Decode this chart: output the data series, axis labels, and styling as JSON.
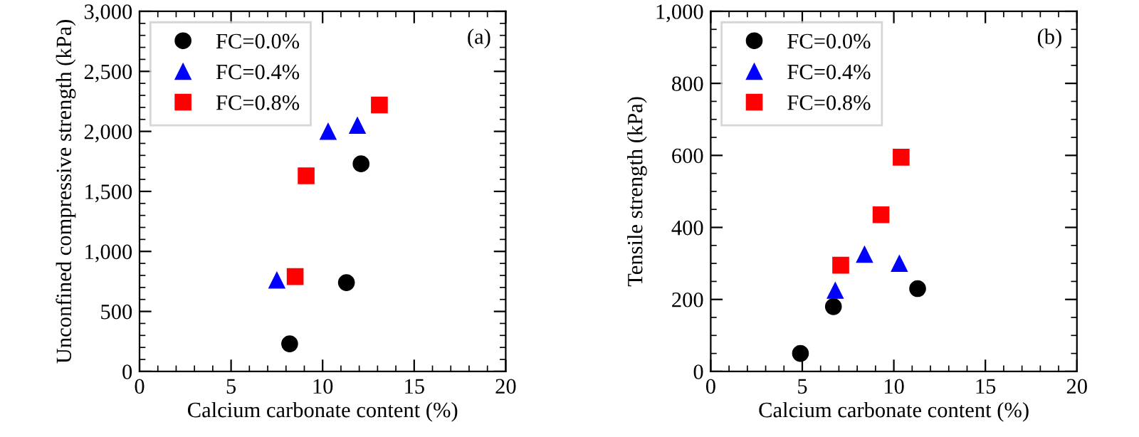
{
  "chart_data": [
    {
      "type": "scatter",
      "xlabel": "Calcium carbonate content (%)",
      "ylabel": "Unconfined compressive strength (kPa)",
      "annotations": [
        "(a)"
      ],
      "legend": "top left",
      "grid": false,
      "xlim": [
        0,
        20
      ],
      "ylim": [
        0,
        3000
      ],
      "xticks": [
        0,
        {
          "value": 1,
          "label": null
        },
        {
          "value": 2,
          "label": null
        },
        {
          "value": 3,
          "label": null
        },
        {
          "value": 4,
          "label": null
        },
        5,
        {
          "value": 6,
          "label": null
        },
        {
          "value": 7,
          "label": null
        },
        {
          "value": 8,
          "label": null
        },
        {
          "value": 9,
          "label": null
        },
        10,
        {
          "value": 11,
          "label": null
        },
        {
          "value": 12,
          "label": null
        },
        {
          "value": 13,
          "label": null
        },
        {
          "value": 14,
          "label": null
        },
        15,
        {
          "value": 16,
          "label": null
        },
        {
          "value": 17,
          "label": null
        },
        {
          "value": 18,
          "label": null
        },
        {
          "value": 19,
          "label": null
        },
        20
      ],
      "yticks": [
        {
          "value": 0,
          "label": "0"
        },
        {
          "value": 100,
          "label": null
        },
        {
          "value": 200,
          "label": null
        },
        {
          "value": 300,
          "label": null
        },
        {
          "value": 400,
          "label": null
        },
        {
          "value": 500,
          "label": "500"
        },
        {
          "value": 600,
          "label": null
        },
        {
          "value": 700,
          "label": null
        },
        {
          "value": 800,
          "label": null
        },
        {
          "value": 900,
          "label": null
        },
        {
          "value": 1000,
          "label": "1,000"
        },
        {
          "value": 1100,
          "label": null
        },
        {
          "value": 1200,
          "label": null
        },
        {
          "value": 1300,
          "label": null
        },
        {
          "value": 1400,
          "label": null
        },
        {
          "value": 1500,
          "label": "1,500"
        },
        {
          "value": 1600,
          "label": null
        },
        {
          "value": 1700,
          "label": null
        },
        {
          "value": 1800,
          "label": null
        },
        {
          "value": 1900,
          "label": null
        },
        {
          "value": 2000,
          "label": "2,000"
        },
        {
          "value": 2100,
          "label": null
        },
        {
          "value": 2200,
          "label": null
        },
        {
          "value": 2300,
          "label": null
        },
        {
          "value": 2400,
          "label": null
        },
        {
          "value": 2500,
          "label": "2,500"
        },
        {
          "value": 2600,
          "label": null
        },
        {
          "value": 2700,
          "label": null
        },
        {
          "value": 2800,
          "label": null
        },
        {
          "value": 2900,
          "label": null
        },
        {
          "value": 3000,
          "label": "3,000"
        }
      ],
      "series": [
        {
          "name": "FC=0.0%",
          "color": "#000000",
          "marker": "circle",
          "x": [
            8.2,
            11.3,
            12.1
          ],
          "values": [
            230,
            740,
            1730
          ]
        },
        {
          "name": "FC=0.4%",
          "color": "#0000ff",
          "marker": "triangle",
          "x": [
            7.5,
            10.3,
            11.9
          ],
          "values": [
            760,
            2000,
            2050
          ]
        },
        {
          "name": "FC=0.8%",
          "color": "#ff0000",
          "marker": "square",
          "x": [
            8.5,
            9.1,
            13.1
          ],
          "values": [
            790,
            1630,
            2220
          ]
        }
      ]
    },
    {
      "type": "scatter",
      "xlabel": "Calcium carbonate content (%)",
      "ylabel": "Tensile strength (kPa)",
      "annotations": [
        "(b)"
      ],
      "legend": "top left",
      "grid": false,
      "xlim": [
        0,
        20
      ],
      "ylim": [
        0,
        1000
      ],
      "xticks": [
        0,
        {
          "value": 1,
          "label": null
        },
        {
          "value": 2,
          "label": null
        },
        {
          "value": 3,
          "label": null
        },
        {
          "value": 4,
          "label": null
        },
        5,
        {
          "value": 6,
          "label": null
        },
        {
          "value": 7,
          "label": null
        },
        {
          "value": 8,
          "label": null
        },
        {
          "value": 9,
          "label": null
        },
        10,
        {
          "value": 11,
          "label": null
        },
        {
          "value": 12,
          "label": null
        },
        {
          "value": 13,
          "label": null
        },
        {
          "value": 14,
          "label": null
        },
        15,
        {
          "value": 16,
          "label": null
        },
        {
          "value": 17,
          "label": null
        },
        {
          "value": 18,
          "label": null
        },
        {
          "value": 19,
          "label": null
        },
        20
      ],
      "yticks": [
        0,
        {
          "value": 50,
          "label": null
        },
        {
          "value": 100,
          "label": null
        },
        {
          "value": 150,
          "label": null
        },
        200,
        {
          "value": 250,
          "label": null
        },
        {
          "value": 300,
          "label": null
        },
        {
          "value": 350,
          "label": null
        },
        400,
        {
          "value": 450,
          "label": null
        },
        {
          "value": 500,
          "label": null
        },
        {
          "value": 550,
          "label": null
        },
        600,
        {
          "value": 650,
          "label": null
        },
        {
          "value": 700,
          "label": null
        },
        {
          "value": 750,
          "label": null
        },
        800,
        {
          "value": 850,
          "label": null
        },
        {
          "value": 900,
          "label": null
        },
        {
          "value": 950,
          "label": null
        },
        {
          "value": 1000,
          "label": "1,000"
        }
      ],
      "series": [
        {
          "name": "FC=0.0%",
          "color": "#000000",
          "marker": "circle",
          "x": [
            4.9,
            6.7,
            11.3
          ],
          "values": [
            50,
            180,
            230
          ]
        },
        {
          "name": "FC=0.4%",
          "color": "#0000ff",
          "marker": "triangle",
          "x": [
            6.8,
            8.4,
            10.3
          ],
          "values": [
            225,
            325,
            300
          ]
        },
        {
          "name": "FC=0.8%",
          "color": "#ff0000",
          "marker": "square",
          "x": [
            7.1,
            9.3,
            10.4
          ],
          "values": [
            295,
            435,
            595
          ]
        }
      ]
    }
  ]
}
